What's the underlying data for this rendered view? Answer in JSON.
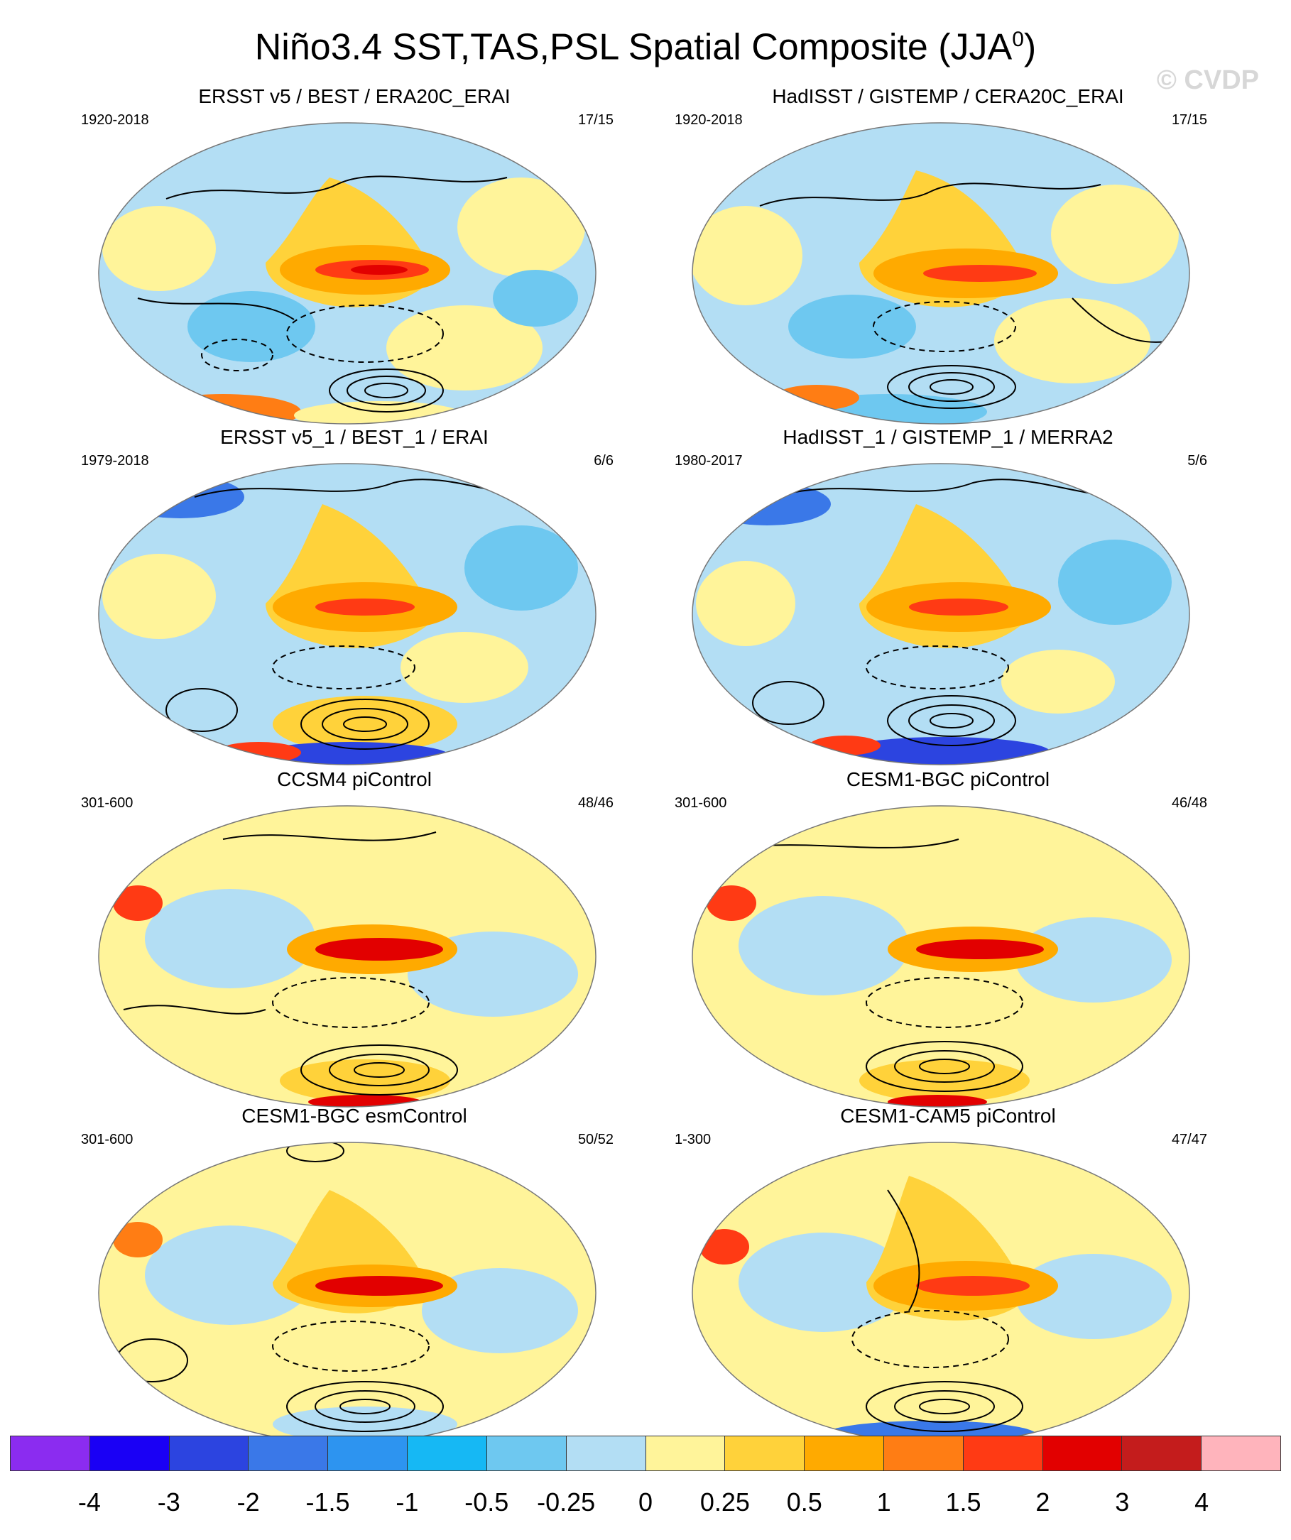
{
  "figure": {
    "title_prefix": "Niño3.4 SST,TAS,PSL Spatial Composite (JJA",
    "title_superscript": "0",
    "title_suffix": ")",
    "watermark": "© CVDP"
  },
  "panels": [
    {
      "title": "ERSST v5 / BEST / ERA20C_ERAI",
      "period": "1920-2018",
      "count": "17/15"
    },
    {
      "title": "HadISST / GISTEMP / CERA20C_ERAI",
      "period": "1920-2018",
      "count": "17/15"
    },
    {
      "title": "ERSST v5_1 / BEST_1 / ERAI",
      "period": "1979-2018",
      "count": "6/6"
    },
    {
      "title": "HadISST_1 / GISTEMP_1 / MERRA2",
      "period": "1980-2017",
      "count": "5/6"
    },
    {
      "title": "CCSM4 piControl",
      "period": "301-600",
      "count": "48/46"
    },
    {
      "title": "CESM1-BGC piControl",
      "period": "301-600",
      "count": "46/48"
    },
    {
      "title": "CESM1-BGC esmControl",
      "period": "301-600",
      "count": "50/52"
    },
    {
      "title": "CESM1-CAM5 piControl",
      "period": "1-300",
      "count": "47/47"
    }
  ],
  "colorbar": {
    "colors": [
      "#8b2cf0",
      "#1a00f5",
      "#2c44e0",
      "#3a78e8",
      "#2d94f0",
      "#16b8f4",
      "#6ec8f0",
      "#b3def4",
      "#fff49a",
      "#ffd23a",
      "#ffaa00",
      "#ff7d14",
      "#ff3a14",
      "#e20000",
      "#c41c1c",
      "#ffb4bc"
    ],
    "labels": [
      "-4",
      "-3",
      "-2",
      "-1.5",
      "-1",
      "-0.5",
      "-0.25",
      "0",
      "0.25",
      "0.5",
      "1",
      "1.5",
      "2",
      "3",
      "4"
    ]
  }
}
